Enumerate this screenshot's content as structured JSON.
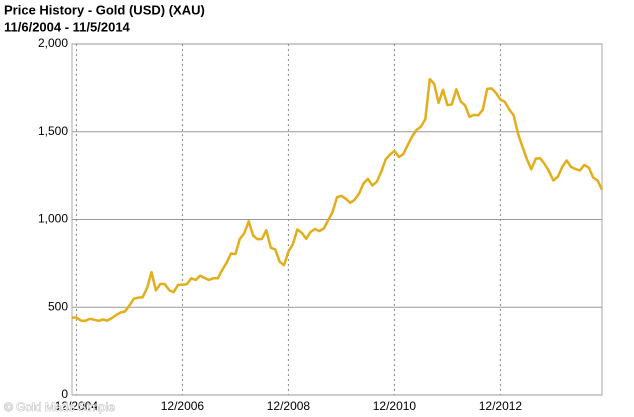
{
  "chart_data": {
    "type": "line",
    "title": "Price History - Gold (USD) (XAU)",
    "subtitle": "11/6/2004 - 11/5/2014",
    "watermark": "© Gold Made Simple",
    "x": [
      "11/2004",
      "12/2004",
      "01/2005",
      "02/2005",
      "03/2005",
      "04/2005",
      "05/2005",
      "06/2005",
      "07/2005",
      "08/2005",
      "09/2005",
      "10/2005",
      "11/2005",
      "12/2005",
      "01/2006",
      "02/2006",
      "03/2006",
      "04/2006",
      "05/2006",
      "06/2006",
      "07/2006",
      "08/2006",
      "09/2006",
      "10/2006",
      "11/2006",
      "12/2006",
      "01/2007",
      "02/2007",
      "03/2007",
      "04/2007",
      "05/2007",
      "06/2007",
      "07/2007",
      "08/2007",
      "09/2007",
      "10/2007",
      "11/2007",
      "12/2007",
      "01/2008",
      "02/2008",
      "03/2008",
      "04/2008",
      "05/2008",
      "06/2008",
      "07/2008",
      "08/2008",
      "09/2008",
      "10/2008",
      "11/2008",
      "12/2008",
      "01/2009",
      "02/2009",
      "03/2009",
      "04/2009",
      "05/2009",
      "06/2009",
      "07/2009",
      "08/2009",
      "09/2009",
      "10/2009",
      "11/2009",
      "12/2009",
      "01/2010",
      "02/2010",
      "03/2010",
      "04/2010",
      "05/2010",
      "06/2010",
      "07/2010",
      "08/2010",
      "09/2010",
      "10/2010",
      "11/2010",
      "12/2010",
      "01/2011",
      "02/2011",
      "03/2011",
      "04/2011",
      "05/2011",
      "06/2011",
      "07/2011",
      "08/2011",
      "09/2011",
      "10/2011",
      "11/2011",
      "12/2011",
      "01/2012",
      "02/2012",
      "03/2012",
      "04/2012",
      "05/2012",
      "06/2012",
      "07/2012",
      "08/2012",
      "09/2012",
      "10/2012",
      "11/2012",
      "12/2012",
      "01/2013",
      "02/2013",
      "03/2013",
      "04/2013",
      "05/2013",
      "06/2013",
      "07/2013",
      "08/2013",
      "09/2013",
      "10/2013",
      "11/2013",
      "12/2013",
      "01/2014",
      "02/2014",
      "03/2014",
      "04/2014",
      "05/2014",
      "06/2014",
      "07/2014",
      "08/2014",
      "09/2014",
      "10/2014",
      "11/2014"
    ],
    "series": [
      {
        "name": "Gold (USD)",
        "color": "#e3ae1c",
        "values": [
          440,
          442,
          424,
          423,
          434,
          429,
          422,
          430,
          424,
          438,
          456,
          470,
          476,
          510,
          549,
          555,
          557,
          610,
          700,
          596,
          633,
          632,
          598,
          586,
          627,
          629,
          631,
          665,
          655,
          680,
          667,
          655,
          665,
          665,
          712,
          754,
          806,
          803,
          889,
          922,
          990,
          909,
          888,
          889,
          939,
          839,
          830,
          760,
          740,
          816,
          858,
          943,
          924,
          890,
          929,
          946,
          934,
          949,
          996,
          1043,
          1127,
          1135,
          1118,
          1095,
          1113,
          1148,
          1205,
          1232,
          1193,
          1215,
          1271,
          1342,
          1370,
          1391,
          1356,
          1372,
          1424,
          1473,
          1510,
          1529,
          1572,
          1800,
          1772,
          1665,
          1739,
          1652,
          1656,
          1742,
          1673,
          1650,
          1585,
          1596,
          1594,
          1626,
          1744,
          1747,
          1721,
          1684,
          1671,
          1627,
          1593,
          1487,
          1414,
          1343,
          1286,
          1347,
          1349,
          1316,
          1275,
          1222,
          1244,
          1300,
          1336,
          1299,
          1288,
          1279,
          1311,
          1296,
          1239,
          1222,
          1170
        ]
      }
    ],
    "xlim": [
      "11/2004",
      "11/2014"
    ],
    "xticks": [
      "12/2004",
      "12/2006",
      "12/2008",
      "12/2010",
      "12/2012"
    ],
    "ylim": [
      0,
      2000
    ],
    "yticks": [
      0,
      500,
      {
        "value": 1000,
        "label": "1,000"
      },
      {
        "value": 1500,
        "label": "1,500"
      },
      {
        "value": 2000,
        "label": "2,000"
      }
    ],
    "grid": true
  }
}
